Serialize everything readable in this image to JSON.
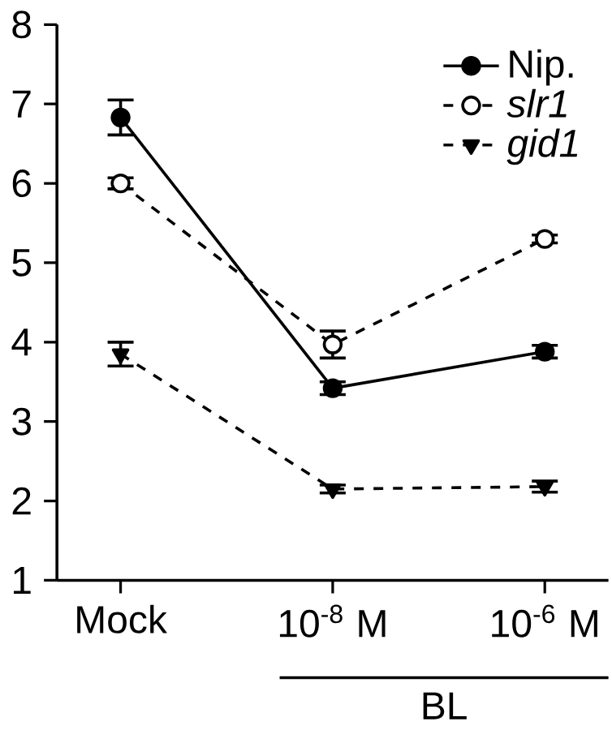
{
  "chart_data": {
    "type": "line",
    "categories": [
      "Mock",
      "10$^{-8}$ M",
      "10$^{-6}$ M"
    ],
    "xlabel": "BL",
    "ylim": [
      1,
      8
    ],
    "yticks": [
      1,
      2,
      3,
      4,
      5,
      6,
      7,
      8
    ],
    "grid": false,
    "legend": "top right",
    "series": [
      {
        "name": "Nip.",
        "color": "#000000",
        "marker": "circle",
        "line_style": "solid",
        "values": [
          6.83,
          3.42,
          3.88
        ],
        "errors": [
          0.22,
          0.08,
          0.08
        ]
      },
      {
        "name": "*slr1*",
        "color": "#000000",
        "marker": "circle",
        "line_style": "dashed",
        "values": [
          6.0,
          3.97,
          5.3
        ],
        "errors": [
          0.07,
          0.17,
          0.05
        ]
      },
      {
        "name": "*gid1*",
        "color": "#000000",
        "marker": "triangle",
        "line_style": "dashed",
        "values": [
          3.85,
          2.15,
          2.18
        ],
        "errors": [
          0.15,
          0.05,
          0.07
        ]
      }
    ]
  }
}
